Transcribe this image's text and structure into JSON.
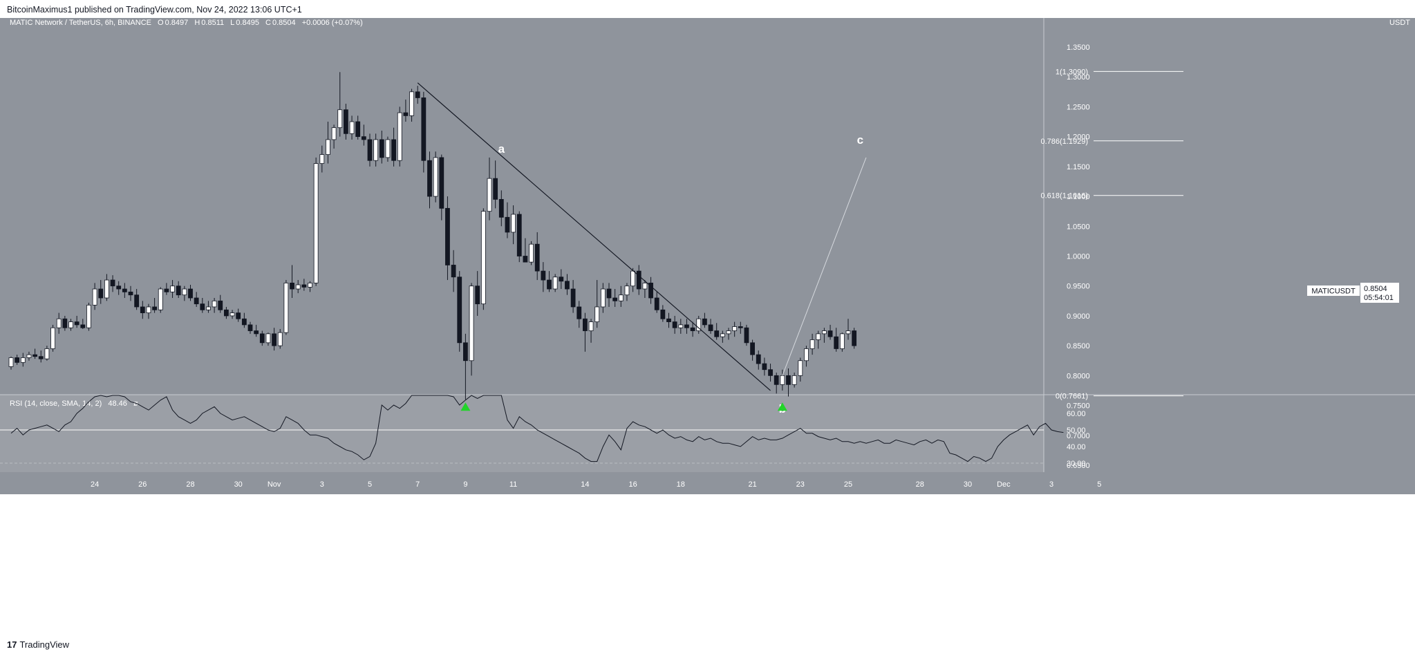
{
  "header": {
    "published_text": "BitcoinMaximus1 published on TradingView.com, Nov 24, 2022 13:06 UTC+1"
  },
  "footer": {
    "brand": "TradingView",
    "logo_glyph": "17"
  },
  "legend": {
    "symbol_text": "MATIC Network / TetherUS, 6h, BINANCE",
    "o_label": "O",
    "o_value": "0.8497",
    "h_label": "H",
    "h_value": "0.8511",
    "l_label": "L",
    "l_value": "0.8495",
    "c_label": "C",
    "c_value": "0.8504",
    "change": "+0.0006 (+0.07%)"
  },
  "price_axis": {
    "currency": "USDT",
    "ticks": [
      "1.3500",
      "1.3000",
      "1.2500",
      "1.2000",
      "1.1500",
      "1.1000",
      "1.0500",
      "1.0000",
      "0.9500",
      "0.9000",
      "0.8500",
      "0.8000",
      "0.7500",
      "0.7000",
      "0.6500"
    ],
    "ticker_label": "MATICUSDT",
    "last_price": "0.8504",
    "countdown": "05:54:01"
  },
  "rsi": {
    "label": "RSI (14, close, SMA, 14, 2)",
    "value": "48.46",
    "extra": "ø",
    "ticks": [
      "60.00",
      "50.00",
      "40.00",
      "30.00"
    ],
    "values": [
      48,
      51,
      47,
      50,
      51,
      52,
      53,
      51,
      49,
      53,
      55,
      60,
      63,
      67,
      70,
      74,
      70,
      72,
      75,
      70,
      67,
      66,
      64,
      62,
      65,
      68,
      70,
      62,
      58,
      56,
      54,
      56,
      60,
      62,
      64,
      60,
      58,
      56,
      57,
      58,
      56,
      54,
      52,
      50,
      49,
      51,
      58,
      56,
      54,
      50,
      47,
      47,
      46,
      45,
      42,
      40,
      38,
      37,
      35,
      32,
      34,
      42,
      65,
      62,
      65,
      63,
      66,
      75,
      79,
      82,
      78,
      74,
      72,
      75,
      70,
      65,
      68,
      72,
      69,
      72,
      74,
      76,
      78,
      56,
      51,
      58,
      55,
      53,
      50,
      48,
      46,
      44,
      42,
      40,
      38,
      36,
      33,
      31,
      31,
      40,
      47,
      43,
      38,
      51,
      55,
      53,
      52,
      50,
      48,
      50,
      47,
      45,
      46,
      44,
      43,
      46,
      44,
      45,
      43,
      42,
      42,
      41,
      40,
      43,
      46,
      44,
      45,
      44,
      44,
      45,
      47,
      49,
      51,
      48,
      48,
      46,
      45,
      44,
      45,
      43,
      43,
      42,
      43,
      42,
      43,
      44,
      42,
      42,
      44,
      43,
      42,
      41,
      43,
      44,
      42,
      44,
      43,
      36,
      35,
      33,
      31,
      34,
      33,
      31,
      33,
      40,
      44,
      47,
      49,
      51,
      53,
      47,
      52,
      54,
      50,
      49,
      48.5
    ],
    "last_value": 48.46
  },
  "x_axis": {
    "ticks": [
      {
        "label": "24",
        "t": 14
      },
      {
        "label": "26",
        "t": 22
      },
      {
        "label": "28",
        "t": 30
      },
      {
        "label": "30",
        "t": 38
      },
      {
        "label": "Nov",
        "t": 44
      },
      {
        "label": "3",
        "t": 52
      },
      {
        "label": "5",
        "t": 60
      },
      {
        "label": "7",
        "t": 68
      },
      {
        "label": "9",
        "t": 76
      },
      {
        "label": "11",
        "t": 84
      },
      {
        "label": "14",
        "t": 96
      },
      {
        "label": "16",
        "t": 104
      },
      {
        "label": "18",
        "t": 112
      },
      {
        "label": "21",
        "t": 124
      },
      {
        "label": "23",
        "t": 132
      },
      {
        "label": "25",
        "t": 140
      },
      {
        "label": "28",
        "t": 152
      },
      {
        "label": "30",
        "t": 160
      },
      {
        "label": "Dec",
        "t": 166
      },
      {
        "label": "3",
        "t": 174
      },
      {
        "label": "5",
        "t": 182
      }
    ]
  },
  "fib_levels": [
    {
      "label": "1(1.3090)",
      "price": 1.309
    },
    {
      "label": "0.786(1.1929)",
      "price": 1.1929
    },
    {
      "label": "0.618(1.1016)",
      "price": 1.1016
    },
    {
      "label": "0(0.7661)",
      "price": 0.7661
    }
  ],
  "wave_labels": [
    {
      "label": "a",
      "t": 82,
      "price": 1.173
    },
    {
      "label": "b",
      "t": 129,
      "price": 0.738
    },
    {
      "label": "c",
      "t": 142,
      "price": 1.188
    }
  ],
  "colors": {
    "background": "#8f949c",
    "rsi_background": "#9b9fa6",
    "up_candle": "#ffffff",
    "down_candle": "#131722",
    "marker": "#22d42a",
    "text": "#ffffff"
  },
  "chart_data": {
    "type": "candlestick",
    "symbol": "MATIC Network / TetherUS",
    "interval": "6h",
    "exchange": "BINANCE",
    "ylim": [
      0.64,
      1.36
    ],
    "x_range": [
      0,
      185
    ],
    "candles": [
      [
        0.815,
        0.832,
        0.81,
        0.83
      ],
      [
        0.83,
        0.835,
        0.818,
        0.822
      ],
      [
        0.822,
        0.838,
        0.815,
        0.83
      ],
      [
        0.83,
        0.84,
        0.825,
        0.835
      ],
      [
        0.835,
        0.845,
        0.828,
        0.832
      ],
      [
        0.832,
        0.842,
        0.822,
        0.828
      ],
      [
        0.828,
        0.85,
        0.825,
        0.845
      ],
      [
        0.845,
        0.885,
        0.84,
        0.88
      ],
      [
        0.88,
        0.905,
        0.87,
        0.895
      ],
      [
        0.895,
        0.9,
        0.875,
        0.88
      ],
      [
        0.88,
        0.895,
        0.875,
        0.89
      ],
      [
        0.89,
        0.9,
        0.88,
        0.885
      ],
      [
        0.885,
        0.895,
        0.878,
        0.88
      ],
      [
        0.88,
        0.922,
        0.875,
        0.918
      ],
      [
        0.918,
        0.955,
        0.91,
        0.945
      ],
      [
        0.945,
        0.96,
        0.92,
        0.93
      ],
      [
        0.93,
        0.97,
        0.925,
        0.96
      ],
      [
        0.96,
        0.968,
        0.94,
        0.95
      ],
      [
        0.95,
        0.958,
        0.935,
        0.945
      ],
      [
        0.945,
        0.955,
        0.93,
        0.94
      ],
      [
        0.94,
        0.95,
        0.925,
        0.935
      ],
      [
        0.935,
        0.945,
        0.91,
        0.915
      ],
      [
        0.915,
        0.925,
        0.895,
        0.905
      ],
      [
        0.905,
        0.92,
        0.895,
        0.915
      ],
      [
        0.915,
        0.93,
        0.905,
        0.91
      ],
      [
        0.91,
        0.948,
        0.905,
        0.945
      ],
      [
        0.945,
        0.955,
        0.935,
        0.94
      ],
      [
        0.94,
        0.96,
        0.93,
        0.95
      ],
      [
        0.95,
        0.958,
        0.93,
        0.935
      ],
      [
        0.935,
        0.95,
        0.925,
        0.945
      ],
      [
        0.945,
        0.952,
        0.925,
        0.93
      ],
      [
        0.93,
        0.94,
        0.915,
        0.92
      ],
      [
        0.92,
        0.93,
        0.905,
        0.91
      ],
      [
        0.91,
        0.925,
        0.905,
        0.915
      ],
      [
        0.915,
        0.93,
        0.905,
        0.925
      ],
      [
        0.925,
        0.935,
        0.905,
        0.91
      ],
      [
        0.91,
        0.915,
        0.895,
        0.9
      ],
      [
        0.9,
        0.91,
        0.895,
        0.905
      ],
      [
        0.905,
        0.912,
        0.89,
        0.895
      ],
      [
        0.895,
        0.905,
        0.88,
        0.885
      ],
      [
        0.885,
        0.89,
        0.87,
        0.875
      ],
      [
        0.875,
        0.885,
        0.865,
        0.87
      ],
      [
        0.87,
        0.875,
        0.85,
        0.855
      ],
      [
        0.855,
        0.872,
        0.85,
        0.87
      ],
      [
        0.87,
        0.88,
        0.842,
        0.85
      ],
      [
        0.85,
        0.878,
        0.845,
        0.872
      ],
      [
        0.872,
        0.96,
        0.868,
        0.955
      ],
      [
        0.955,
        0.985,
        0.93,
        0.945
      ],
      [
        0.945,
        0.96,
        0.938,
        0.952
      ],
      [
        0.952,
        0.962,
        0.942,
        0.948
      ],
      [
        0.948,
        0.958,
        0.94,
        0.955
      ],
      [
        0.955,
        1.165,
        0.95,
        1.155
      ],
      [
        1.155,
        1.185,
        1.14,
        1.17
      ],
      [
        1.17,
        1.225,
        1.155,
        1.195
      ],
      [
        1.195,
        1.22,
        1.18,
        1.215
      ],
      [
        1.215,
        1.308,
        1.2,
        1.245
      ],
      [
        1.245,
        1.255,
        1.195,
        1.205
      ],
      [
        1.205,
        1.235,
        1.195,
        1.225
      ],
      [
        1.225,
        1.235,
        1.195,
        1.2
      ],
      [
        1.2,
        1.22,
        1.185,
        1.195
      ],
      [
        1.195,
        1.205,
        1.15,
        1.16
      ],
      [
        1.16,
        1.205,
        1.15,
        1.195
      ],
      [
        1.195,
        1.21,
        1.155,
        1.165
      ],
      [
        1.165,
        1.2,
        1.158,
        1.195
      ],
      [
        1.195,
        1.215,
        1.15,
        1.16
      ],
      [
        1.16,
        1.25,
        1.15,
        1.24
      ],
      [
        1.24,
        1.262,
        1.225,
        1.235
      ],
      [
        1.235,
        1.28,
        1.225,
        1.275
      ],
      [
        1.275,
        1.285,
        1.255,
        1.265
      ],
      [
        1.265,
        1.275,
        1.14,
        1.16
      ],
      [
        1.16,
        1.175,
        1.08,
        1.1
      ],
      [
        1.1,
        1.175,
        1.09,
        1.165
      ],
      [
        1.165,
        1.17,
        1.06,
        1.08
      ],
      [
        1.08,
        1.1,
        0.96,
        0.985
      ],
      [
        0.985,
        1.01,
        0.94,
        0.965
      ],
      [
        0.965,
        0.975,
        0.84,
        0.855
      ],
      [
        0.855,
        0.87,
        0.76,
        0.825
      ],
      [
        0.825,
        0.955,
        0.8,
        0.95
      ],
      [
        0.95,
        0.975,
        0.9,
        0.92
      ],
      [
        0.92,
        1.08,
        0.91,
        1.075
      ],
      [
        1.075,
        1.165,
        1.06,
        1.13
      ],
      [
        1.13,
        1.16,
        1.08,
        1.095
      ],
      [
        1.095,
        1.11,
        1.05,
        1.065
      ],
      [
        1.065,
        1.09,
        1.03,
        1.04
      ],
      [
        1.04,
        1.085,
        1.02,
        1.07
      ],
      [
        1.07,
        1.075,
        0.99,
        1.0
      ],
      [
        1.0,
        1.03,
        0.99,
        0.99
      ],
      [
        0.99,
        1.025,
        0.985,
        1.02
      ],
      [
        1.02,
        1.04,
        0.96,
        0.975
      ],
      [
        0.975,
        0.99,
        0.94,
        0.96
      ],
      [
        0.96,
        0.975,
        0.94,
        0.945
      ],
      [
        0.945,
        0.97,
        0.94,
        0.965
      ],
      [
        0.965,
        0.978,
        0.945,
        0.958
      ],
      [
        0.958,
        0.97,
        0.935,
        0.945
      ],
      [
        0.945,
        0.96,
        0.905,
        0.915
      ],
      [
        0.915,
        0.925,
        0.88,
        0.895
      ],
      [
        0.895,
        0.905,
        0.84,
        0.875
      ],
      [
        0.875,
        0.895,
        0.855,
        0.89
      ],
      [
        0.89,
        0.96,
        0.88,
        0.915
      ],
      [
        0.915,
        0.955,
        0.905,
        0.945
      ],
      [
        0.945,
        0.955,
        0.915,
        0.93
      ],
      [
        0.93,
        0.945,
        0.915,
        0.925
      ],
      [
        0.925,
        0.95,
        0.915,
        0.935
      ],
      [
        0.935,
        0.955,
        0.925,
        0.95
      ],
      [
        0.95,
        0.98,
        0.94,
        0.975
      ],
      [
        0.975,
        0.985,
        0.935,
        0.945
      ],
      [
        0.945,
        0.96,
        0.93,
        0.955
      ],
      [
        0.955,
        0.965,
        0.92,
        0.93
      ],
      [
        0.93,
        0.94,
        0.905,
        0.91
      ],
      [
        0.91,
        0.918,
        0.89,
        0.895
      ],
      [
        0.895,
        0.905,
        0.88,
        0.89
      ],
      [
        0.89,
        0.9,
        0.87,
        0.88
      ],
      [
        0.88,
        0.895,
        0.87,
        0.885
      ],
      [
        0.885,
        0.895,
        0.87,
        0.88
      ],
      [
        0.88,
        0.89,
        0.865,
        0.875
      ],
      [
        0.875,
        0.9,
        0.87,
        0.895
      ],
      [
        0.895,
        0.905,
        0.88,
        0.885
      ],
      [
        0.885,
        0.895,
        0.87,
        0.875
      ],
      [
        0.875,
        0.888,
        0.86,
        0.865
      ],
      [
        0.865,
        0.875,
        0.855,
        0.87
      ],
      [
        0.87,
        0.88,
        0.86,
        0.875
      ],
      [
        0.875,
        0.89,
        0.865,
        0.882
      ],
      [
        0.882,
        0.89,
        0.87,
        0.88
      ],
      [
        0.88,
        0.885,
        0.85,
        0.855
      ],
      [
        0.855,
        0.86,
        0.825,
        0.835
      ],
      [
        0.835,
        0.842,
        0.81,
        0.82
      ],
      [
        0.82,
        0.83,
        0.8,
        0.81
      ],
      [
        0.81,
        0.82,
        0.79,
        0.8
      ],
      [
        0.8,
        0.805,
        0.77,
        0.785
      ],
      [
        0.785,
        0.81,
        0.775,
        0.8
      ],
      [
        0.8,
        0.812,
        0.765,
        0.785
      ],
      [
        0.785,
        0.805,
        0.78,
        0.8
      ],
      [
        0.8,
        0.83,
        0.79,
        0.825
      ],
      [
        0.825,
        0.85,
        0.815,
        0.845
      ],
      [
        0.845,
        0.87,
        0.835,
        0.86
      ],
      [
        0.86,
        0.875,
        0.845,
        0.87
      ],
      [
        0.87,
        0.88,
        0.855,
        0.875
      ],
      [
        0.875,
        0.885,
        0.86,
        0.865
      ],
      [
        0.865,
        0.88,
        0.84,
        0.845
      ],
      [
        0.845,
        0.872,
        0.84,
        0.87
      ],
      [
        0.87,
        0.895,
        0.86,
        0.875
      ],
      [
        0.875,
        0.88,
        0.845,
        0.85
      ]
    ],
    "trendline": {
      "from": {
        "t": 68,
        "price": 1.29
      },
      "to": {
        "t": 127,
        "price": 0.775
      }
    },
    "projection": {
      "from": {
        "t": 129,
        "price": 0.8
      },
      "to": {
        "t": 143,
        "price": 1.165
      }
    },
    "markers": [
      {
        "t": 76,
        "price": 0.748
      },
      {
        "t": 129,
        "price": 0.748
      }
    ]
  }
}
